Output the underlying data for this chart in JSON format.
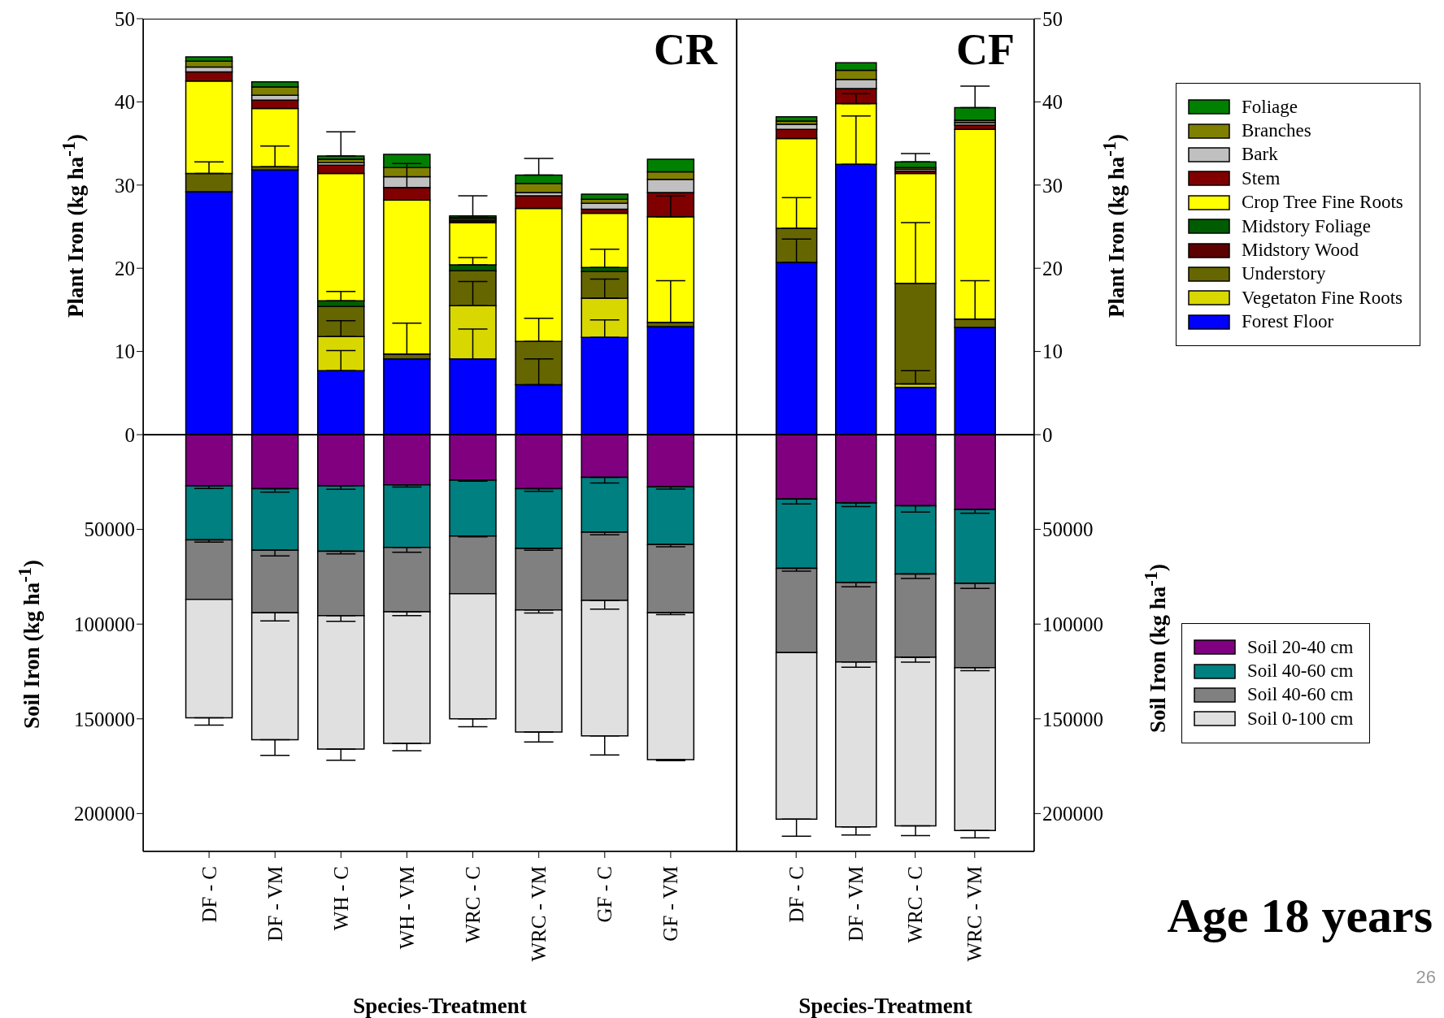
{
  "chart_data": [
    {
      "type": "bar",
      "title": "CR",
      "ylabel": "Plant Iron (kg ha$^{-1}$)",
      "stacked": true,
      "tick_labels": "y",
      "categories": [
        null,
        null,
        null,
        null,
        null,
        null,
        null,
        null
      ],
      "ylim": [
        0,
        50
      ],
      "yticks": [
        0,
        10,
        20,
        30,
        40,
        50
      ],
      "series": [
        {
          "color": "#0000ff",
          "values": [
            29.2,
            31.8,
            7.7,
            9.1,
            9.1,
            6.0,
            11.7,
            13.0
          ],
          "errors": [
            null,
            null,
            [
              7.7,
              10.1
            ],
            null,
            [
              9.1,
              12.7
            ],
            [
              6.0,
              9.1
            ],
            [
              11.7,
              13.8
            ],
            null
          ]
        },
        {
          "color": "#d8d800",
          "values": [
            0,
            0,
            4.1,
            0,
            6.4,
            0,
            4.7,
            0
          ],
          "errors": [
            null,
            null,
            [
              11.8,
              13.7
            ],
            null,
            [
              15.5,
              18.4
            ],
            null,
            [
              16.4,
              18.7
            ],
            null
          ]
        },
        {
          "color": "#666600",
          "values": [
            2.2,
            0.4,
            3.6,
            0.6,
            4.2,
            5.2,
            3.2,
            0.5
          ],
          "errors": [
            [
              31.4,
              32.8
            ],
            [
              32.2,
              34.7
            ],
            null,
            [
              9.7,
              13.4
            ],
            null,
            [
              11.2,
              14.0
            ],
            null,
            [
              13.5,
              18.5
            ]
          ]
        },
        {
          "color": "#5c0000",
          "values": [
            0,
            0,
            0,
            0,
            0,
            0,
            0,
            0
          ]
        },
        {
          "color": "#005c00",
          "values": [
            0,
            0,
            0.7,
            0,
            0.7,
            0,
            0.5,
            0
          ],
          "errors": [
            null,
            null,
            [
              16.1,
              17.2
            ],
            null,
            [
              20.4,
              21.3
            ],
            null,
            [
              20.1,
              22.3
            ],
            null
          ]
        },
        {
          "color": "#ffff00",
          "values": [
            11.1,
            7.0,
            15.3,
            18.5,
            5.1,
            16.0,
            6.5,
            12.7
          ],
          "errors": [
            null,
            null,
            null,
            null,
            null,
            null,
            null,
            [
              26.2,
              28.7
            ]
          ]
        },
        {
          "color": "#800000",
          "values": [
            1.1,
            1.0,
            1.0,
            1.5,
            0.2,
            1.5,
            0.5,
            2.9
          ],
          "errors": [
            null,
            null,
            null,
            [
              29.7,
              32.6
            ],
            null,
            null,
            null,
            null
          ]
        },
        {
          "color": "#c0c0c0",
          "values": [
            0.6,
            0.6,
            0.3,
            1.3,
            0.2,
            0.4,
            0.7,
            1.6
          ]
        },
        {
          "color": "#808000",
          "values": [
            0.7,
            1.0,
            0.4,
            1.1,
            0.2,
            1.1,
            0.5,
            0.9
          ]
        },
        {
          "color": "#008000",
          "values": [
            0.5,
            0.6,
            0.4,
            1.6,
            0.2,
            1.0,
            0.6,
            1.5
          ],
          "errors": [
            null,
            null,
            [
              33.5,
              36.4
            ],
            null,
            [
              26.3,
              28.7
            ],
            [
              31.2,
              33.2
            ],
            null,
            null
          ]
        }
      ]
    },
    {
      "type": "bar",
      "ylabel": "Soil Iron (kg ha$^{-1}$)",
      "xlabel": "Species-Treatment",
      "stacked": true,
      "categories": [
        "DF - C",
        "DF - VM",
        "WH - C",
        "WH - VM",
        "WRC - C",
        "WRC - VM",
        "GF - C",
        "GF - VM"
      ],
      "ylim": [
        220000,
        0
      ],
      "yticks": [
        50000,
        100000,
        150000,
        200000
      ],
      "series": [
        {
          "color": "#800080",
          "values": [
            27000,
            28500,
            27000,
            26500,
            24000,
            28500,
            22500,
            27500
          ],
          "errors": [
            [
              27000,
              28400
            ],
            [
              28500,
              30300
            ],
            [
              27000,
              28800
            ],
            [
              26500,
              27700
            ],
            [
              24000,
              24600
            ],
            [
              28500,
              29900
            ],
            [
              22500,
              25500
            ],
            [
              27500,
              28700
            ]
          ]
        },
        {
          "color": "#008080",
          "values": [
            28500,
            32500,
            34500,
            33000,
            29500,
            31500,
            29000,
            30500
          ],
          "errors": [
            [
              55500,
              56700
            ],
            [
              61000,
              64000
            ],
            [
              61500,
              62900
            ],
            [
              59500,
              62100
            ],
            [
              53500,
              53900
            ],
            [
              60000,
              61000
            ],
            [
              51500,
              52900
            ],
            [
              58000,
              59200
            ]
          ]
        },
        {
          "color": "#808080",
          "values": [
            31500,
            33000,
            34000,
            34000,
            30500,
            32500,
            36000,
            36000
          ],
          "errors": [
            null,
            [
              94000,
              98300
            ],
            [
              95500,
              98500
            ],
            [
              93500,
              95500
            ],
            null,
            [
              92500,
              94100
            ],
            [
              87500,
              92100
            ],
            [
              94000,
              95000
            ]
          ]
        },
        {
          "color": "#e0e0e0",
          "values": [
            62500,
            67000,
            70500,
            69500,
            66000,
            64500,
            71500,
            77500
          ],
          "errors": [
            [
              149500,
              153300
            ],
            [
              161000,
              169300
            ],
            [
              166000,
              171900
            ],
            [
              163000,
              166800
            ],
            [
              150000,
              154200
            ],
            [
              157000,
              162200
            ],
            [
              159000,
              169100
            ],
            [
              171500,
              172100
            ]
          ]
        }
      ]
    },
    {
      "type": "bar",
      "title": "CF",
      "ylabel": "Plant Iron (kg ha$^{-1}$)",
      "stacked": true,
      "legend": "right",
      "tick_labels": "y",
      "categories": [
        null,
        null,
        null,
        null
      ],
      "ylim": [
        0,
        50
      ],
      "yticks": [
        0,
        10,
        20,
        30,
        40,
        50
      ],
      "series": [
        {
          "name": "Forest Floor",
          "color": "#0000ff",
          "values": [
            20.7,
            32.5,
            5.7,
            12.9
          ],
          "errors": [
            [
              20.7,
              23.5
            ],
            [
              32.5,
              38.3
            ],
            null,
            null
          ]
        },
        {
          "name": "Vegetaton Fine Roots",
          "color": "#d8d800",
          "values": [
            0,
            0,
            0.4,
            0
          ],
          "errors": [
            null,
            null,
            [
              6.1,
              7.7
            ],
            null
          ]
        },
        {
          "name": "Understory",
          "color": "#666600",
          "values": [
            4.1,
            0,
            12.1,
            1.0
          ],
          "errors": [
            [
              24.8,
              28.5
            ],
            null,
            [
              18.2,
              25.5
            ],
            [
              13.9,
              18.5
            ]
          ]
        },
        {
          "name": "Midstory Wood",
          "color": "#5c0000",
          "values": [
            0,
            0,
            0,
            0
          ]
        },
        {
          "name": "Midstory Foliage",
          "color": "#005c00",
          "values": [
            0,
            0,
            0,
            0
          ]
        },
        {
          "name": "Crop Tree Fine Roots",
          "color": "#ffff00",
          "values": [
            10.8,
            7.3,
            13.2,
            22.8
          ],
          "errors": [
            null,
            [
              39.8,
              41.0
            ],
            null,
            null
          ]
        },
        {
          "name": "Stem",
          "color": "#800000",
          "values": [
            1.1,
            1.8,
            0.3,
            0.5
          ]
        },
        {
          "name": "Bark",
          "color": "#c0c0c0",
          "values": [
            0.6,
            1.1,
            0.2,
            0.3
          ]
        },
        {
          "name": "Branches",
          "color": "#808000",
          "values": [
            0.4,
            1.1,
            0.2,
            0.3
          ]
        },
        {
          "name": "Foliage",
          "color": "#008000",
          "values": [
            0.5,
            0.9,
            0.7,
            1.5
          ],
          "errors": [
            null,
            null,
            [
              32.8,
              33.8
            ],
            [
              39.3,
              41.9
            ]
          ]
        }
      ]
    },
    {
      "type": "bar",
      "y2label": "Soil Iron (kg ha$^{-1}$)",
      "xlabel": "Species-Treatment",
      "stacked": true,
      "legend": "right",
      "categories": [
        "DF - C",
        "DF - VM",
        "WRC - C",
        "WRC - VM"
      ],
      "y2lim": [
        220000,
        0
      ],
      "y2ticks": [
        50000,
        100000,
        150000,
        200000
      ],
      "annotations": [
        "Age 18 years",
        "26"
      ],
      "series": [
        {
          "name": "Soil 20-40 cm",
          "color": "#800080",
          "axis": "y2",
          "values": [
            34000,
            36000,
            37500,
            39500
          ],
          "errors": [
            [
              34000,
              36600
            ],
            [
              36000,
              37900
            ],
            [
              37500,
              40900
            ],
            [
              39500,
              41500
            ]
          ]
        },
        {
          "name": "Soil 40-60 cm",
          "color": "#008080",
          "axis": "y2",
          "values": [
            36500,
            42000,
            36000,
            39000
          ],
          "errors": [
            [
              70500,
              72100
            ],
            [
              78000,
              80300
            ],
            [
              73500,
              75900
            ],
            [
              78500,
              81200
            ]
          ]
        },
        {
          "name": "Soil 40-60 cm",
          "color": "#808080",
          "axis": "y2",
          "values": [
            44500,
            42000,
            44000,
            44500
          ],
          "errors": [
            null,
            [
              120000,
              122800
            ],
            [
              117500,
              120100
            ],
            [
              123000,
              124600
            ]
          ]
        },
        {
          "name": "Soil 0-100 cm",
          "color": "#e0e0e0",
          "axis": "y2",
          "values": [
            88000,
            87000,
            89000,
            86000
          ],
          "errors": [
            [
              203000,
              212000
            ],
            [
              207000,
              211300
            ],
            [
              206500,
              211600
            ],
            [
              209000,
              212800
            ]
          ]
        }
      ]
    }
  ]
}
